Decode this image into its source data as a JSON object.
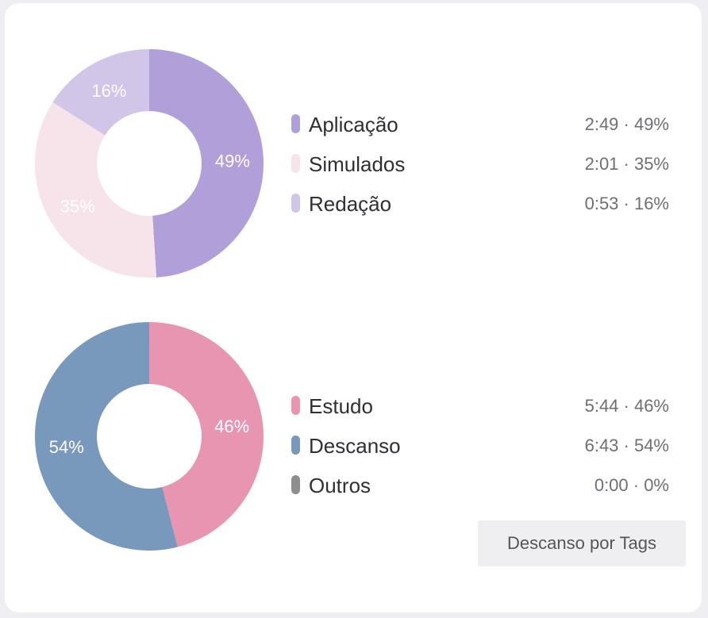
{
  "chart_data": [
    {
      "type": "pie",
      "categories": [
        "Aplicação",
        "Simulados",
        "Redação"
      ],
      "values": [
        49,
        35,
        16
      ],
      "durations": [
        "2:49",
        "2:01",
        "0:53"
      ],
      "percent_labels": [
        "49%",
        "35%",
        "16%"
      ],
      "legend_values": [
        "2:49 · 49%",
        "2:01 · 35%",
        "0:53 · 16%"
      ],
      "colors": [
        "#b09fd9",
        "#f6e4ea",
        "#d1c5e8"
      ],
      "label_colors": [
        "#ffffff",
        "#ffffff",
        "#ffffff"
      ],
      "legend": "right"
    },
    {
      "type": "pie",
      "categories": [
        "Estudo",
        "Descanso",
        "Outros"
      ],
      "values": [
        46,
        54,
        0
      ],
      "durations": [
        "5:44",
        "6:43",
        "0:00"
      ],
      "percent_labels": [
        "46%",
        "54%",
        "0%"
      ],
      "legend_values": [
        "5:44 · 46%",
        "6:43 · 54%",
        "0:00 · 0%"
      ],
      "colors": [
        "#e795b0",
        "#7899bb",
        "#8e8e8e"
      ],
      "label_colors": [
        "#ffffff",
        "#ffffff",
        "#ffffff"
      ],
      "legend": "right"
    }
  ],
  "tags_button": {
    "label": "Descanso por Tags"
  }
}
